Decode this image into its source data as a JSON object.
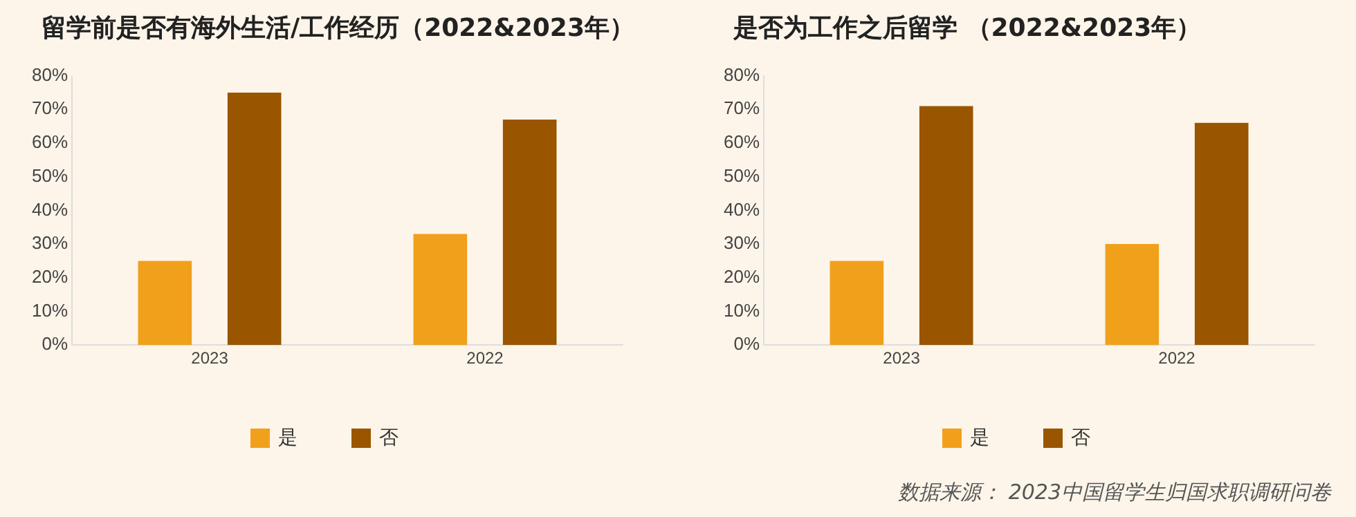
{
  "chart_data": [
    {
      "type": "bar",
      "title": "留学前是否有海外生活/工作经历（2022&2023年）",
      "categories": [
        "2023",
        "2022"
      ],
      "series": [
        {
          "name": "是",
          "color": "#f0a01a",
          "values": [
            25,
            33
          ]
        },
        {
          "name": "否",
          "color": "#9a5500",
          "values": [
            75,
            67
          ]
        }
      ],
      "ylim": [
        0,
        80
      ],
      "yticks": [
        {
          "value": 0,
          "label": "0%"
        },
        {
          "value": 10,
          "label": "10%"
        },
        {
          "value": 20,
          "label": "20%"
        },
        {
          "value": 30,
          "label": "30%"
        },
        {
          "value": 40,
          "label": "40%"
        },
        {
          "value": 50,
          "label": "50%"
        },
        {
          "value": 60,
          "label": "60%"
        },
        {
          "value": 70,
          "label": "70%"
        },
        {
          "value": 80,
          "label": "80%"
        }
      ],
      "grid": false,
      "legend": "bottom"
    },
    {
      "type": "bar",
      "title": "是否为工作之后留学 （2022&2023年）",
      "categories": [
        "2023",
        "2022"
      ],
      "series": [
        {
          "name": "是",
          "color": "#f0a01a",
          "values": [
            25,
            30
          ]
        },
        {
          "name": "否",
          "color": "#9a5500",
          "values": [
            71,
            66
          ]
        }
      ],
      "ylim": [
        0,
        80
      ],
      "yticks": [
        {
          "value": 0,
          "label": "0%"
        },
        {
          "value": 10,
          "label": "10%"
        },
        {
          "value": 20,
          "label": "20%"
        },
        {
          "value": 30,
          "label": "30%"
        },
        {
          "value": 40,
          "label": "40%"
        },
        {
          "value": 50,
          "label": "50%"
        },
        {
          "value": 60,
          "label": "60%"
        },
        {
          "value": 70,
          "label": "70%"
        },
        {
          "value": 80,
          "label": "80%"
        }
      ],
      "grid": false,
      "legend": "bottom",
      "annotations": [
        "数据来源： 2023中国留学生归国求职调研问卷"
      ]
    }
  ]
}
